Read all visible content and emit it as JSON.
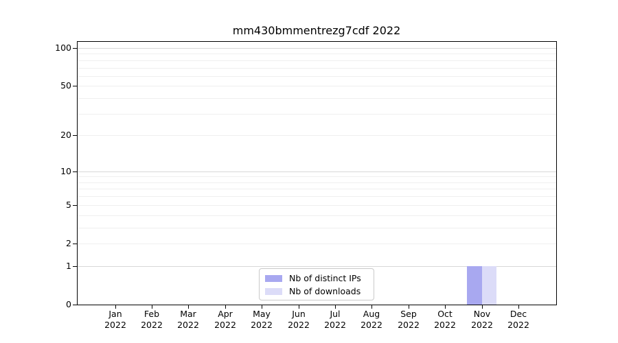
{
  "chart_data": {
    "type": "bar",
    "title": "mm430bmmentrezg7cdf 2022",
    "categories": [
      "Jan",
      "Feb",
      "Mar",
      "Apr",
      "May",
      "Jun",
      "Jul",
      "Aug",
      "Sep",
      "Oct",
      "Nov",
      "Dec"
    ],
    "x_tick_year": "2022",
    "series": [
      {
        "name": "Nb of distinct IPs",
        "color": "#a8a8f0",
        "values": [
          0,
          0,
          0,
          0,
          0,
          0,
          0,
          0,
          0,
          0,
          1,
          0
        ]
      },
      {
        "name": "Nb of downloads",
        "color": "#dcdcf8",
        "values": [
          0,
          0,
          0,
          0,
          0,
          0,
          0,
          0,
          0,
          0,
          1,
          0
        ]
      }
    ],
    "y_axis": {
      "scale": "log1p",
      "ticks": [
        0,
        1,
        2,
        5,
        10,
        20,
        50,
        100
      ],
      "max": 110,
      "gridlines_minor": [
        2,
        3,
        4,
        5,
        6,
        7,
        8,
        9,
        20,
        30,
        40,
        50,
        60,
        70,
        80,
        90
      ],
      "gridlines_major": [
        1,
        10,
        100
      ]
    },
    "grid": true,
    "legend_position": "lower center",
    "colors": {
      "grid_minor": "#efefef",
      "grid_major": "#d7d7d7",
      "axis": "#000000",
      "text": "#000000"
    }
  }
}
